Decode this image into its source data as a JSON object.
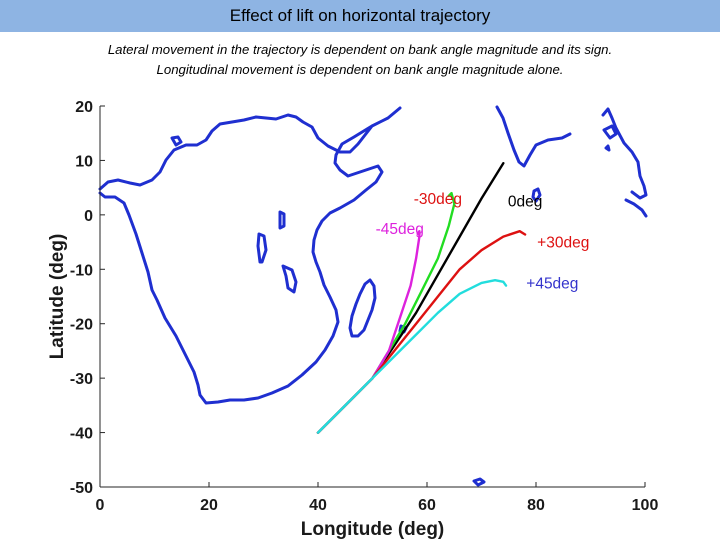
{
  "header": {
    "title": "Effect of lift on horizontal trajectory",
    "subtitle_line1": "Lateral movement in the trajectory is dependent on bank angle magnitude and its sign.",
    "subtitle_line2": "Longitudinal movement is dependent on bank angle magnitude alone."
  },
  "colors": {
    "title_bar": "#8eb4e3",
    "coastline": "#1f2fd0",
    "black": "#000000",
    "green": "#22dd22",
    "magenta": "#dd22dd",
    "red": "#dd1111",
    "cyan": "#22dddd"
  },
  "chart_data": {
    "type": "line",
    "title": "",
    "xlabel": "Longitude (deg)",
    "ylabel": "Latitude (deg)",
    "xlim": [
      0,
      100
    ],
    "ylim": [
      -50,
      20
    ],
    "xticks": [
      0,
      20,
      40,
      60,
      80,
      100
    ],
    "yticks": [
      20,
      10,
      0,
      -10,
      -20,
      -30,
      -40,
      -50
    ],
    "grid": false,
    "background_map": "coastlines of Africa, Madagascar and India (blue)",
    "series": [
      {
        "name": "0deg",
        "color": "#000000",
        "points": [
          [
            40,
            -40
          ],
          [
            45,
            -35
          ],
          [
            50,
            -30
          ],
          [
            54,
            -24
          ],
          [
            58,
            -18
          ],
          [
            62,
            -11
          ],
          [
            66,
            -4
          ],
          [
            70,
            3
          ],
          [
            74,
            9.5
          ]
        ]
      },
      {
        "name": "-30deg",
        "color": "#22dd22",
        "points": [
          [
            40,
            -40
          ],
          [
            45,
            -35
          ],
          [
            50,
            -30
          ],
          [
            53,
            -25
          ],
          [
            56,
            -20
          ],
          [
            59,
            -14
          ],
          [
            62,
            -8
          ],
          [
            64,
            -2
          ],
          [
            65,
            2
          ],
          [
            64.5,
            4
          ],
          [
            64,
            3.5
          ]
        ]
      },
      {
        "name": "-45deg",
        "color": "#dd22dd",
        "points": [
          [
            40,
            -40
          ],
          [
            45,
            -35
          ],
          [
            50,
            -30
          ],
          [
            53,
            -25
          ],
          [
            55,
            -19
          ],
          [
            57,
            -13
          ],
          [
            58,
            -8
          ],
          [
            58.6,
            -4
          ],
          [
            58.6,
            -3
          ],
          [
            58.3,
            -3.5
          ]
        ]
      },
      {
        "name": "+30deg",
        "color": "#dd1111",
        "points": [
          [
            40,
            -40
          ],
          [
            45,
            -35
          ],
          [
            50,
            -30
          ],
          [
            54,
            -25
          ],
          [
            58,
            -20
          ],
          [
            62,
            -15
          ],
          [
            66,
            -10
          ],
          [
            70,
            -6.5
          ],
          [
            74,
            -4
          ],
          [
            77,
            -3
          ],
          [
            78,
            -3.6
          ]
        ]
      },
      {
        "name": "+45deg",
        "color": "#22dddd",
        "points": [
          [
            40,
            -40
          ],
          [
            45,
            -35
          ],
          [
            50,
            -30
          ],
          [
            54,
            -26
          ],
          [
            58,
            -22
          ],
          [
            62,
            -18
          ],
          [
            66,
            -14.5
          ],
          [
            70,
            -12.5
          ],
          [
            72.5,
            -12
          ],
          [
            74,
            -12.3
          ],
          [
            74.5,
            -13
          ]
        ]
      }
    ],
    "annotations": [
      {
        "text": "-30deg",
        "x": 62,
        "y": 2,
        "color": "#dd1111"
      },
      {
        "text": "-45deg",
        "x": 55,
        "y": -3.5,
        "color": "#dd22dd"
      },
      {
        "text": "0deg",
        "x": 78,
        "y": 1.5,
        "color": "#000000"
      },
      {
        "text": "+30deg",
        "x": 85,
        "y": -6,
        "color": "#dd1111"
      },
      {
        "text": "+45deg",
        "x": 83,
        "y": -13.5,
        "color": "#3333cc"
      }
    ]
  }
}
